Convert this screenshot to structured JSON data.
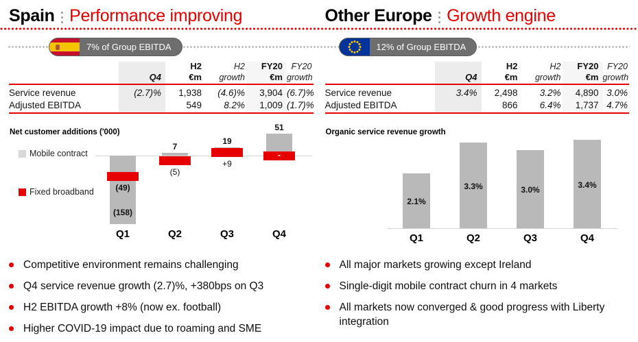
{
  "left": {
    "title": "Spain",
    "tagline": "Performance improving",
    "badge_label": "7% of Group EBITDA",
    "table": {
      "headers": {
        "q4": "Q4",
        "h2_unit_line1": "H2",
        "h2_unit_line2": "€m",
        "h2_growth_line1": "H2",
        "h2_growth_line2": "growth",
        "fy20_unit_line1": "FY20",
        "fy20_unit_line2": "€m",
        "fy20_growth_line1": "FY20",
        "fy20_growth_line2": "growth"
      },
      "rows": [
        {
          "label": "Service revenue",
          "q4": "(2.7)%",
          "h2_eur": "1,938",
          "h2_growth": "(4.6)%",
          "fy20_eur": "3,904",
          "fy20_growth": "(6.7)%"
        },
        {
          "label": "Adjusted EBITDA",
          "q4": "",
          "h2_eur": "549",
          "h2_growth": "8.2%",
          "fy20_eur": "1,009",
          "fy20_growth": "(1.7)%"
        }
      ]
    },
    "bullets": [
      "Competitive environment remains challenging",
      "Q4 service revenue growth (2.7)%, +380bps on Q3",
      "H2 EBITDA growth +8% (now ex. football)",
      "Higher COVID-19 impact due to roaming and SME"
    ]
  },
  "right": {
    "title": "Other Europe",
    "tagline": "Growth engine",
    "badge_label": "12% of Group EBITDA",
    "table": {
      "headers": {
        "q4": "Q4",
        "h2_unit_line1": "H2",
        "h2_unit_line2": "€m",
        "h2_growth_line1": "H2",
        "h2_growth_line2": "growth",
        "fy20_unit_line1": "FY20",
        "fy20_unit_line2": "€m",
        "fy20_growth_line1": "FY20",
        "fy20_growth_line2": "growth"
      },
      "rows": [
        {
          "label": "Service revenue",
          "q4": "3.4%",
          "h2_eur": "2,498",
          "h2_growth": "3.2%",
          "fy20_eur": "4,890",
          "fy20_growth": "3.0%"
        },
        {
          "label": "Adjusted EBITDA",
          "q4": "",
          "h2_eur": "866",
          "h2_growth": "6.4%",
          "fy20_eur": "1,737",
          "fy20_growth": "4.7%"
        }
      ]
    },
    "bullets": [
      "All major markets growing except Ireland",
      "Single-digit mobile contract churn in 4 markets",
      "All markets now converged & good progress with Liberty integration"
    ]
  },
  "colors": {
    "accent_red": "#e60000",
    "bar_gray": "#b9b9b9",
    "legend_gray": "#d8d8d8",
    "badge_gray": "#6e6e6e",
    "spain_flag_red": "#c8102e",
    "spain_flag_yellow": "#f4c400",
    "eu_flag_blue": "#003399",
    "eu_flag_star_yellow": "#ffcc00"
  },
  "chart_data": [
    {
      "type": "bar",
      "title": "Net customer additions ('000)",
      "categories": [
        "Q1",
        "Q2",
        "Q3",
        "Q4"
      ],
      "series": [
        {
          "name": "Mobile contract",
          "color": "#b9b9b9",
          "values": [
            -158,
            7,
            19,
            51
          ],
          "value_labels": [
            "(158)",
            "7",
            "19",
            "51"
          ]
        },
        {
          "name": "Fixed broadband",
          "color": "#e60000",
          "values": [
            -49,
            -5,
            9,
            0
          ],
          "value_labels": [
            "(49)",
            "(5)",
            "+9",
            "-"
          ]
        }
      ],
      "legend_position": "left",
      "baseline": 0,
      "grid": false
    },
    {
      "type": "bar",
      "title": "Organic service revenue growth",
      "categories": [
        "Q1",
        "Q2",
        "Q3",
        "Q4"
      ],
      "values": [
        2.1,
        3.3,
        3.0,
        3.4
      ],
      "value_labels": [
        "2.1%",
        "3.3%",
        "3.0%",
        "3.4%"
      ],
      "bar_color": "#b9b9b9",
      "unit": "%",
      "ylim": [
        0,
        3.6
      ],
      "grid": false
    }
  ]
}
